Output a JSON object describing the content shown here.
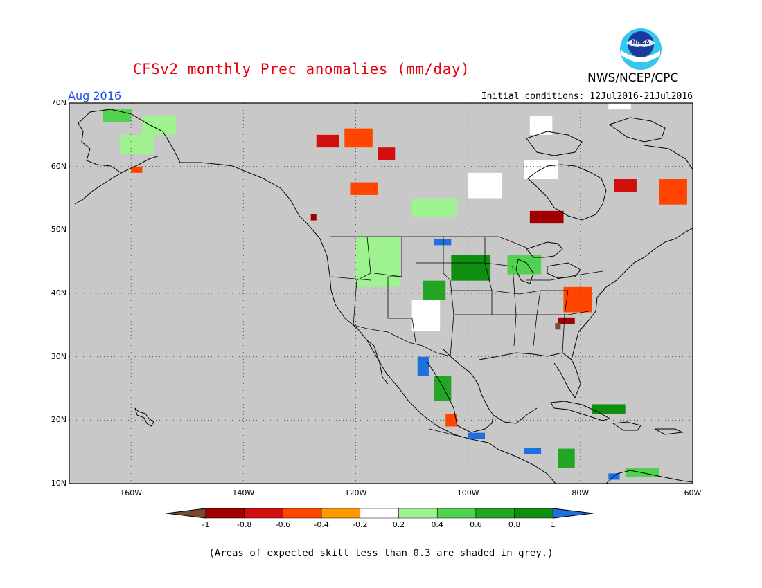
{
  "header": {
    "title": "CFSv2 monthly Prec anomalies (mm/day)",
    "agency": "NWS/NCEP/CPC",
    "logo_text": "NOAA",
    "month": "Aug 2016",
    "initial_conditions": "Initial conditions: 12Jul2016-21Jul2016"
  },
  "map": {
    "lat_labels": [
      "70N",
      "60N",
      "50N",
      "40N",
      "30N",
      "20N",
      "10N"
    ],
    "lat_values": [
      70,
      60,
      50,
      40,
      30,
      20,
      10
    ],
    "lon_labels": [
      "160W",
      "140W",
      "120W",
      "100W",
      "80W",
      "60W"
    ],
    "lon_values": [
      -160,
      -140,
      -120,
      -100,
      -80,
      -60
    ],
    "lon_range": [
      -171,
      -60
    ],
    "lat_range": [
      10,
      70
    ],
    "land_color": "#c8c8c8",
    "ocean_color": "#c8c8c8",
    "anomaly_cells": [
      {
        "lon": -165,
        "lat": 67,
        "w": 5,
        "h": 2,
        "v": 0.4
      },
      {
        "lon": -158,
        "lat": 65,
        "w": 6,
        "h": 3,
        "v": 0.2
      },
      {
        "lon": -162,
        "lat": 62,
        "w": 6,
        "h": 3,
        "v": 0.3
      },
      {
        "lon": -160,
        "lat": 59,
        "w": 2,
        "h": 1,
        "v": -0.4
      },
      {
        "lon": -127,
        "lat": 63,
        "w": 4,
        "h": 2,
        "v": -0.6
      },
      {
        "lon": -122,
        "lat": 63,
        "w": 5,
        "h": 3,
        "v": -0.4
      },
      {
        "lon": -116,
        "lat": 61,
        "w": 3,
        "h": 2,
        "v": -0.6
      },
      {
        "lon": -128,
        "lat": 51.5,
        "w": 1,
        "h": 1,
        "v": -0.8
      },
      {
        "lon": -121,
        "lat": 55.5,
        "w": 5,
        "h": 2,
        "v": -0.4
      },
      {
        "lon": -89,
        "lat": 51,
        "w": 6,
        "h": 2,
        "v": -0.8
      },
      {
        "lon": -74,
        "lat": 56,
        "w": 4,
        "h": 2,
        "v": -0.6
      },
      {
        "lon": -66,
        "lat": 54,
        "w": 5,
        "h": 4,
        "v": -0.4
      },
      {
        "lon": -83,
        "lat": 37,
        "w": 5,
        "h": 4,
        "v": -0.4
      },
      {
        "lon": -84,
        "lat": 35.2,
        "w": 3,
        "h": 1,
        "v": -0.8
      },
      {
        "lon": -84.5,
        "lat": 34.3,
        "w": 1,
        "h": 1,
        "v": -1
      },
      {
        "lon": -103,
        "lat": 42,
        "w": 7,
        "h": 4,
        "v": 0.8
      },
      {
        "lon": -93,
        "lat": 43,
        "w": 6,
        "h": 3,
        "v": 0.4
      },
      {
        "lon": -108,
        "lat": 39,
        "w": 4,
        "h": 3,
        "v": 0.6
      },
      {
        "lon": -120,
        "lat": 41,
        "w": 8,
        "h": 8,
        "v": 0.2
      },
      {
        "lon": -110,
        "lat": 34,
        "w": 5,
        "h": 5,
        "v": 0.1
      },
      {
        "lon": -106,
        "lat": 47.6,
        "w": 3,
        "h": 1,
        "v": 1
      },
      {
        "lon": -109,
        "lat": 27,
        "w": 2,
        "h": 3,
        "v": 1
      },
      {
        "lon": -106,
        "lat": 23,
        "w": 3,
        "h": 4,
        "v": 0.6
      },
      {
        "lon": -104,
        "lat": 19,
        "w": 2,
        "h": 2,
        "v": -0.4
      },
      {
        "lon": -100,
        "lat": 17,
        "w": 3,
        "h": 1,
        "v": 1
      },
      {
        "lon": -90,
        "lat": 14.6,
        "w": 3,
        "h": 1,
        "v": 1
      },
      {
        "lon": -84,
        "lat": 12.5,
        "w": 3,
        "h": 3,
        "v": 0.7
      },
      {
        "lon": -78,
        "lat": 21,
        "w": 6,
        "h": 1.5,
        "v": 0.8
      },
      {
        "lon": -72,
        "lat": 11,
        "w": 6,
        "h": 1.5,
        "v": 0.4
      },
      {
        "lon": -75,
        "lat": 10.6,
        "w": 2,
        "h": 1,
        "v": 1
      },
      {
        "lon": -89,
        "lat": 65,
        "w": 4,
        "h": 3,
        "v": 0.1
      },
      {
        "lon": -75,
        "lat": 69,
        "w": 4,
        "h": 2,
        "v": 0.1
      },
      {
        "lon": -90,
        "lat": 58,
        "w": 6,
        "h": 3,
        "v": 0.1
      },
      {
        "lon": -110,
        "lat": 52,
        "w": 8,
        "h": 3,
        "v": 0.2
      },
      {
        "lon": -100,
        "lat": 55,
        "w": 6,
        "h": 4,
        "v": 0.1
      }
    ]
  },
  "colorbar": {
    "labels": [
      "-1",
      "-0.8",
      "-0.6",
      "-0.4",
      "-0.2",
      "0.2",
      "0.4",
      "0.6",
      "0.8",
      "1"
    ],
    "colors": [
      "#7a4a2e",
      "#a00000",
      "#d10f0f",
      "#ff4500",
      "#ff9900",
      "#ffffff",
      "#9ef28f",
      "#4fd24f",
      "#23a623",
      "#0f8f0f",
      "#1e6fe0"
    ]
  },
  "footer": {
    "note": "(Areas of expected skill less than 0.3 are shaded in grey.)"
  }
}
